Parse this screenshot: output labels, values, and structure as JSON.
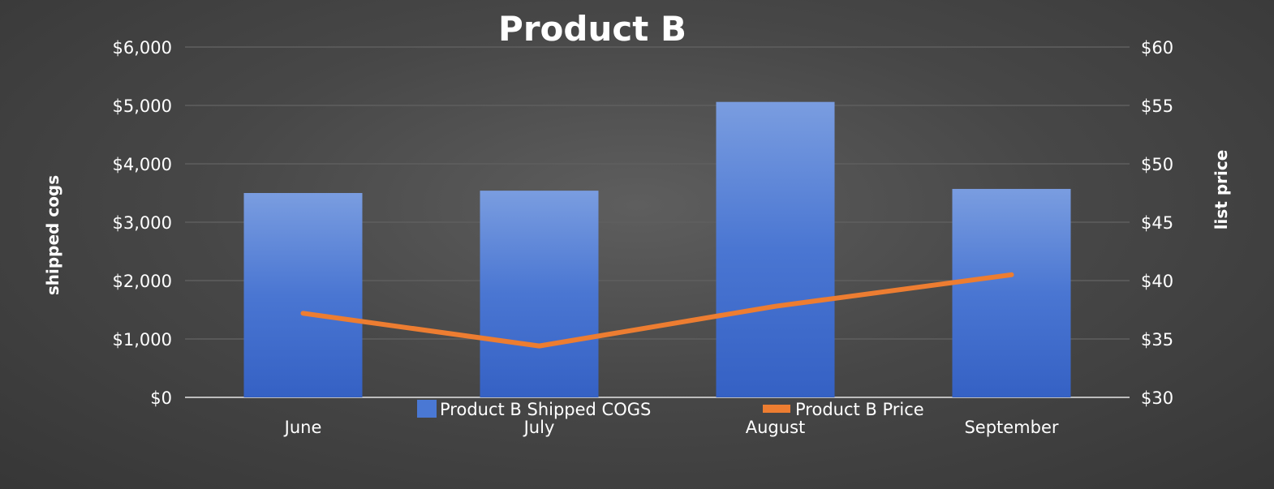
{
  "chart_data": {
    "type": "bar",
    "title": "Product B",
    "categories": [
      "June",
      "July",
      "August",
      "September"
    ],
    "y_left": {
      "label": "shipped cogs",
      "ticks": [
        "$0",
        "$1,000",
        "$2,000",
        "$3,000",
        "$4,000",
        "$5,000",
        "$6,000"
      ],
      "ylim": [
        0,
        6000
      ]
    },
    "y_right": {
      "label": "list price",
      "ticks": [
        "$30",
        "$35",
        "$40",
        "$45",
        "$50",
        "$55",
        "$60"
      ],
      "ylim": [
        30,
        60
      ]
    },
    "series": [
      {
        "name": "Product B Shipped COGS",
        "type": "bar",
        "axis": "left",
        "color": "#4a78d4",
        "values": [
          3500,
          3540,
          5060,
          3570
        ]
      },
      {
        "name": "Product B Price",
        "type": "line",
        "axis": "right",
        "color": "#ed7d31",
        "values": [
          37.2,
          34.4,
          37.8,
          40.5
        ]
      }
    ],
    "grid": true,
    "legend_position": "bottom",
    "colors": {
      "gridline": "#5f5f5f",
      "baseline": "#bdbdbd",
      "text": "#ffffff"
    }
  }
}
